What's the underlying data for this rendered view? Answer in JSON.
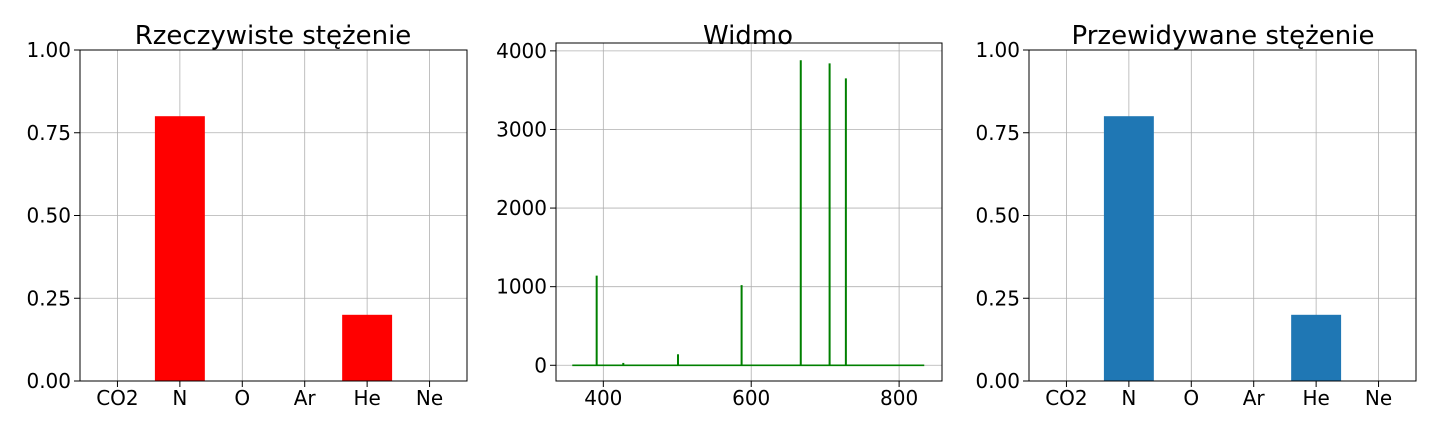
{
  "chart_data": [
    {
      "type": "bar",
      "title": "Rzeczywiste stężenie",
      "categories": [
        "CO2",
        "N",
        "O",
        "Ar",
        "He",
        "Ne"
      ],
      "values": [
        0,
        0.8,
        0,
        0,
        0.2,
        0
      ],
      "ylim": [
        0,
        1
      ],
      "yticks": [
        "0.00",
        "0.25",
        "0.50",
        "0.75",
        "1.00"
      ],
      "color": "#ff0000",
      "grid": true
    },
    {
      "type": "line",
      "title": "Widmo",
      "xlim": [
        336,
        858
      ],
      "ylim": [
        -200,
        4100
      ],
      "xticks": [
        400,
        600,
        800
      ],
      "yticks": [
        0,
        1000,
        2000,
        3000,
        4000
      ],
      "baseline": {
        "x_start": 358,
        "x_end": 834,
        "y": 0
      },
      "peaks": [
        {
          "x": 391,
          "y": 1140
        },
        {
          "x": 427,
          "y": 30
        },
        {
          "x": 501,
          "y": 140
        },
        {
          "x": 587,
          "y": 1020
        },
        {
          "x": 667,
          "y": 3880
        },
        {
          "x": 706,
          "y": 3840
        },
        {
          "x": 728,
          "y": 3650
        }
      ],
      "color": "#008000",
      "grid": true
    },
    {
      "type": "bar",
      "title": "Przewidywane stężenie",
      "categories": [
        "CO2",
        "N",
        "O",
        "Ar",
        "He",
        "Ne"
      ],
      "values": [
        0,
        0.8,
        0,
        0,
        0.2,
        0
      ],
      "ylim": [
        0,
        1
      ],
      "yticks": [
        "0.00",
        "0.25",
        "0.50",
        "0.75",
        "1.00"
      ],
      "color": "#1f77b4",
      "grid": true
    }
  ]
}
